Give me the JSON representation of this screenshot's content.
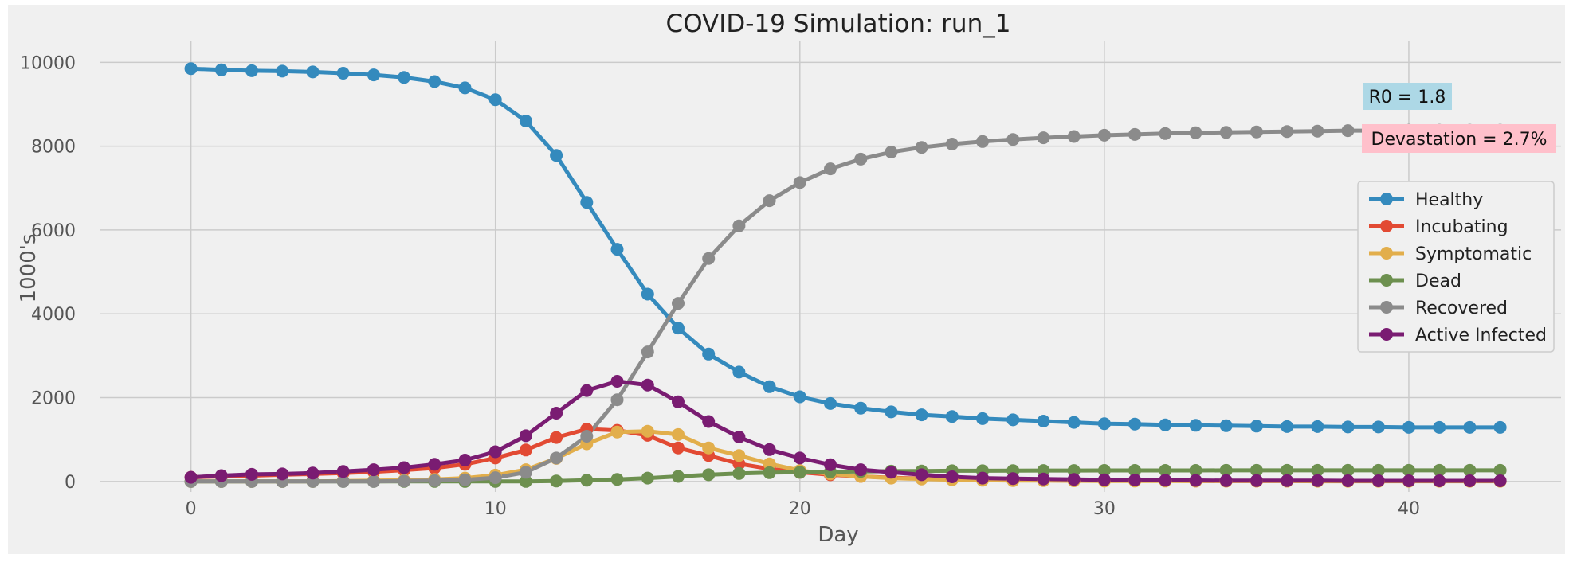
{
  "chart_data": {
    "type": "line",
    "title": "COVID-19 Simulation: run_1",
    "xlabel": "Day",
    "ylabel": "1000's",
    "xlim": [
      -3,
      45
    ],
    "ylim": [
      -250,
      10500
    ],
    "xticks": [
      0,
      10,
      20,
      30,
      40
    ],
    "yticks": [
      0,
      2000,
      4000,
      6000,
      8000,
      10000
    ],
    "grid": true,
    "legend_position": "center-right",
    "annotations": [
      {
        "text": "R0 = 1.8",
        "color": "#add8e6"
      },
      {
        "text": "Devastation = 2.7%",
        "color": "#ffc0cb"
      }
    ],
    "x": [
      0,
      1,
      2,
      3,
      4,
      5,
      6,
      7,
      8,
      9,
      10,
      11,
      12,
      13,
      14,
      15,
      16,
      17,
      18,
      19,
      20,
      21,
      22,
      23,
      24,
      25,
      26,
      27,
      28,
      29,
      30,
      31,
      32,
      33,
      34,
      35,
      36,
      37,
      38,
      39,
      40,
      41,
      42,
      43
    ],
    "series": [
      {
        "name": "Healthy",
        "color": "#348abd",
        "values": [
          9850,
          9820,
          9800,
          9790,
          9770,
          9740,
          9700,
          9640,
          9540,
          9390,
          9110,
          8600,
          7780,
          6660,
          5540,
          4470,
          3660,
          3040,
          2610,
          2260,
          2020,
          1860,
          1750,
          1660,
          1590,
          1550,
          1500,
          1470,
          1440,
          1410,
          1380,
          1370,
          1350,
          1340,
          1330,
          1320,
          1310,
          1310,
          1300,
          1300,
          1290,
          1290,
          1290,
          1290
        ]
      },
      {
        "name": "Incubating",
        "color": "#e24a33",
        "values": [
          100,
          120,
          140,
          160,
          180,
          200,
          230,
          270,
          320,
          410,
          560,
          750,
          1050,
          1250,
          1220,
          1100,
          800,
          620,
          420,
          300,
          220,
          160,
          120,
          90,
          70,
          50,
          40,
          30,
          25,
          20,
          20,
          15,
          15,
          10,
          10,
          10,
          10,
          10,
          10,
          10,
          10,
          10,
          10,
          10
        ]
      },
      {
        "name": "Symptomatic",
        "color": "#e2ae4b",
        "values": [
          0,
          0,
          0,
          0,
          0,
          10,
          20,
          30,
          50,
          80,
          150,
          280,
          550,
          900,
          1180,
          1200,
          1120,
          800,
          620,
          420,
          260,
          180,
          120,
          80,
          60,
          40,
          30,
          20,
          20,
          15,
          10,
          10,
          10,
          10,
          10,
          10,
          10,
          5,
          5,
          5,
          5,
          5,
          5,
          5
        ]
      },
      {
        "name": "Dead",
        "color": "#6d904f",
        "values": [
          0,
          0,
          0,
          0,
          0,
          0,
          0,
          0,
          0,
          0,
          0,
          0,
          10,
          30,
          50,
          80,
          120,
          160,
          190,
          210,
          220,
          230,
          240,
          245,
          250,
          255,
          255,
          258,
          260,
          260,
          262,
          262,
          263,
          263,
          264,
          264,
          265,
          265,
          265,
          265,
          265,
          265,
          265,
          265
        ]
      },
      {
        "name": "Recovered",
        "color": "#8b8b8b",
        "values": [
          0,
          0,
          0,
          0,
          0,
          0,
          0,
          10,
          20,
          40,
          90,
          220,
          560,
          1080,
          1950,
          3090,
          4250,
          5320,
          6100,
          6700,
          7130,
          7460,
          7690,
          7860,
          7970,
          8050,
          8110,
          8160,
          8200,
          8230,
          8260,
          8280,
          8300,
          8320,
          8330,
          8340,
          8350,
          8360,
          8370,
          8370,
          8380,
          8380,
          8380,
          8380
        ]
      },
      {
        "name": "Active Infected",
        "color": "#7a1c72",
        "values": [
          100,
          140,
          170,
          180,
          200,
          240,
          280,
          330,
          410,
          510,
          710,
          1090,
          1630,
          2170,
          2390,
          2300,
          1900,
          1430,
          1060,
          760,
          560,
          400,
          280,
          220,
          160,
          110,
          80,
          70,
          60,
          50,
          40,
          35,
          30,
          25,
          20,
          20,
          20,
          20,
          15,
          15,
          15,
          15,
          15,
          15
        ]
      }
    ]
  }
}
